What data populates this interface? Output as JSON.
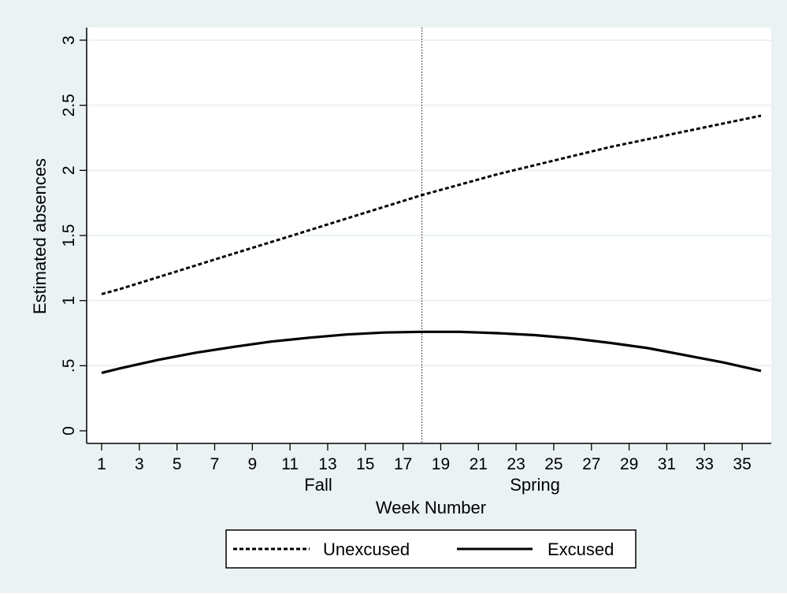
{
  "chart_data": {
    "type": "line",
    "title": "",
    "xlabel": "Week Number",
    "ylabel": "Estimated absences",
    "xlim": [
      1,
      36
    ],
    "ylim": [
      0,
      3
    ],
    "x_ticks": [
      1,
      3,
      5,
      7,
      9,
      11,
      13,
      15,
      17,
      19,
      21,
      23,
      25,
      27,
      29,
      31,
      33,
      35
    ],
    "y_ticks": [
      {
        "value": 0,
        "label": "0"
      },
      {
        "value": 0.5,
        "label": ".5"
      },
      {
        "value": 1,
        "label": "1"
      },
      {
        "value": 1.5,
        "label": "1.5"
      },
      {
        "value": 2,
        "label": "2"
      },
      {
        "value": 2.5,
        "label": "2.5"
      },
      {
        "value": 3,
        "label": "3"
      }
    ],
    "grid": true,
    "reference_line": {
      "x": 18,
      "style": "dotted"
    },
    "semester_labels": [
      {
        "label": "Fall",
        "x": 12.5
      },
      {
        "label": "Spring",
        "x": 24.0
      }
    ],
    "legend": {
      "placement": "bottom"
    },
    "series": [
      {
        "name": "Unexcused",
        "style": "dashed",
        "color": "#000000",
        "x": [
          1,
          2,
          4,
          6,
          8,
          10,
          12,
          14,
          16,
          18,
          20,
          22,
          24,
          26,
          28,
          30,
          32,
          34,
          36
        ],
        "y": [
          1.05,
          1.09,
          1.18,
          1.27,
          1.36,
          1.45,
          1.54,
          1.63,
          1.72,
          1.81,
          1.89,
          1.97,
          2.04,
          2.11,
          2.18,
          2.24,
          2.3,
          2.36,
          2.42
        ]
      },
      {
        "name": "Excused",
        "style": "solid",
        "color": "#000000",
        "x": [
          1,
          2,
          4,
          6,
          8,
          10,
          12,
          14,
          16,
          18,
          20,
          22,
          24,
          26,
          28,
          30,
          32,
          34,
          36
        ],
        "y": [
          0.445,
          0.48,
          0.545,
          0.6,
          0.645,
          0.685,
          0.715,
          0.74,
          0.755,
          0.76,
          0.76,
          0.75,
          0.735,
          0.71,
          0.675,
          0.635,
          0.58,
          0.525,
          0.46
        ]
      }
    ]
  },
  "colors": {
    "outer_background": "#eaf2f3",
    "plot_background": "#ffffff",
    "grid": "#eaf2f3",
    "line": "#000000"
  }
}
